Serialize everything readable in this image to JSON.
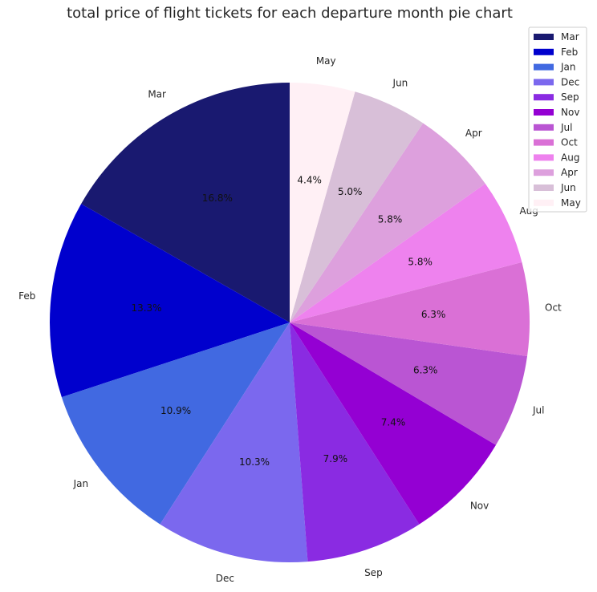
{
  "chart_data": {
    "type": "pie",
    "title": "total price of flight tickets for each departure month pie chart",
    "start_angle_deg": 90,
    "direction": "counterclockwise",
    "legend_position": "top-right",
    "slices": [
      {
        "label": "Mar",
        "value": 16.8,
        "pct": "16.8%",
        "color": "#191970"
      },
      {
        "label": "Feb",
        "value": 13.3,
        "pct": "13.3%",
        "color": "#0000CD"
      },
      {
        "label": "Jan",
        "value": 10.9,
        "pct": "10.9%",
        "color": "#4169E1"
      },
      {
        "label": "Dec",
        "value": 10.3,
        "pct": "10.3%",
        "color": "#7B68EE"
      },
      {
        "label": "Sep",
        "value": 7.9,
        "pct": "7.9%",
        "color": "#8A2BE2"
      },
      {
        "label": "Nov",
        "value": 7.4,
        "pct": "7.4%",
        "color": "#9400D3"
      },
      {
        "label": "Jul",
        "value": 6.3,
        "pct": "6.3%",
        "color": "#BA55D3"
      },
      {
        "label": "Oct",
        "value": 6.3,
        "pct": "6.3%",
        "color": "#DA70D6"
      },
      {
        "label": "Aug",
        "value": 5.8,
        "pct": "5.8%",
        "color": "#EE82EE"
      },
      {
        "label": "Apr",
        "value": 5.8,
        "pct": "5.8%",
        "color": "#DDA0DD"
      },
      {
        "label": "Jun",
        "value": 5.0,
        "pct": "5.0%",
        "color": "#D8BFD8"
      },
      {
        "label": "May",
        "value": 4.4,
        "pct": "4.4%",
        "color": "#FFF0F5"
      }
    ]
  }
}
